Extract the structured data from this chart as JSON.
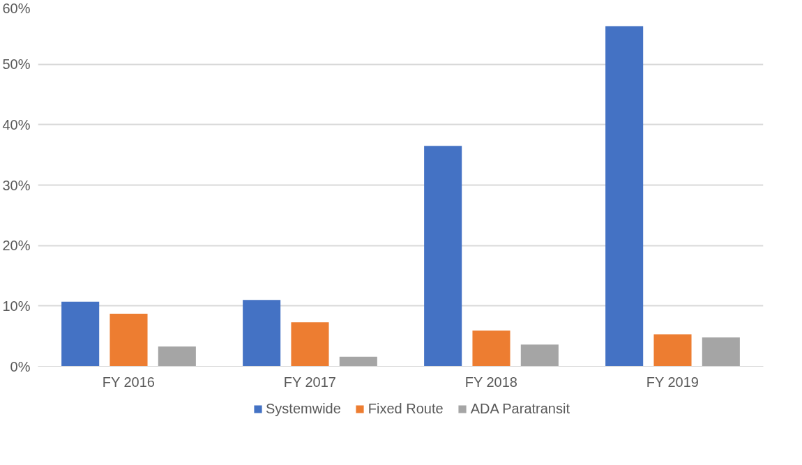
{
  "chart_data": {
    "type": "bar",
    "categories": [
      "FY 2016",
      "FY 2017",
      "FY 2018",
      "FY 2019"
    ],
    "series": [
      {
        "name": "Systemwide",
        "color": "#4472c4",
        "values": [
          10.7,
          11.0,
          36.5,
          56.3
        ]
      },
      {
        "name": "Fixed Route",
        "color": "#ed7d31",
        "values": [
          8.7,
          7.3,
          5.9,
          5.3
        ]
      },
      {
        "name": "ADA Paratransit",
        "color": "#a5a5a5",
        "values": [
          3.3,
          1.6,
          3.6,
          4.8
        ]
      }
    ],
    "ylim": [
      0,
      60
    ],
    "yticks": [
      {
        "value": 0,
        "label": "0%"
      },
      {
        "value": 10,
        "label": "10%"
      },
      {
        "value": 20,
        "label": "20%"
      },
      {
        "value": 30,
        "label": "30%"
      },
      {
        "value": 40,
        "label": "40%"
      },
      {
        "value": 50,
        "label": "50%"
      },
      {
        "value": 60,
        "label": "60%"
      }
    ],
    "grid": "y",
    "legend": "bottom"
  }
}
